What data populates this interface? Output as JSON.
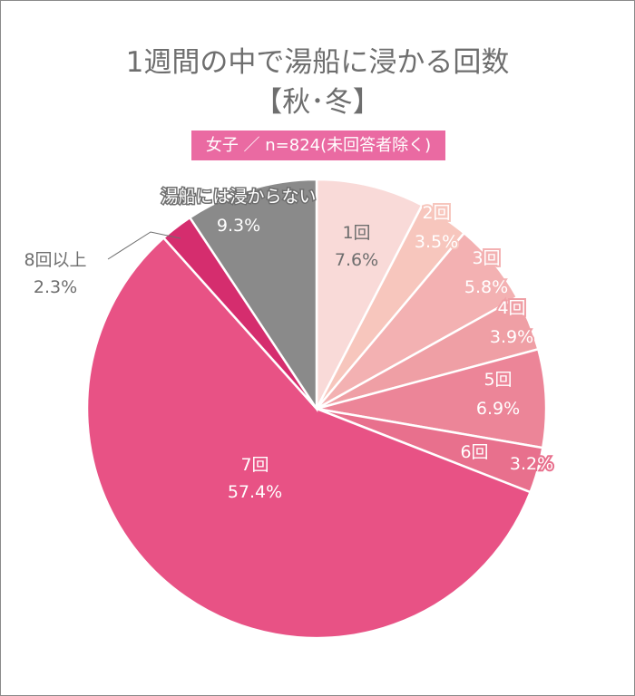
{
  "chart_data": {
    "type": "pie",
    "title": "1週間の中で湯船に浸かる回数",
    "title2": "【秋･冬】",
    "subtitle": "女子 ／ n=824(未回答者除く)",
    "slices": [
      {
        "label": "1回",
        "value": 7.6,
        "value_label": "7.6%",
        "color": "#f9dad8",
        "text_color": "#6e6e6e"
      },
      {
        "label": "2回",
        "value": 3.5,
        "value_label": "3.5%",
        "color": "#f7c6bd",
        "text_color": "#ffffff"
      },
      {
        "label": "3回",
        "value": 5.8,
        "value_label": "5.8%",
        "color": "#f3b1b2",
        "text_color": "#ffffff"
      },
      {
        "label": "4回",
        "value": 3.9,
        "value_label": "3.9%",
        "color": "#ef9fa5",
        "text_color": "#ffffff"
      },
      {
        "label": "5回",
        "value": 6.9,
        "value_label": "6.9%",
        "color": "#ec8598",
        "text_color": "#ffffff"
      },
      {
        "label": "6回",
        "value": 3.2,
        "value_label": "3.2%",
        "color": "#e8708d",
        "text_color": "#ffffff"
      },
      {
        "label": "7回",
        "value": 57.4,
        "value_label": "57.4%",
        "color": "#e85285",
        "text_color": "#ffffff"
      },
      {
        "label": "8回以上",
        "value": 2.3,
        "value_label": "2.3%",
        "color": "#d52d6e",
        "text_color": "#6e6e6e"
      },
      {
        "label": "湯船には浸からない",
        "value": 9.3,
        "value_label": "9.3%",
        "color": "#8a8a8a",
        "text_color": "#ffffff"
      }
    ]
  }
}
